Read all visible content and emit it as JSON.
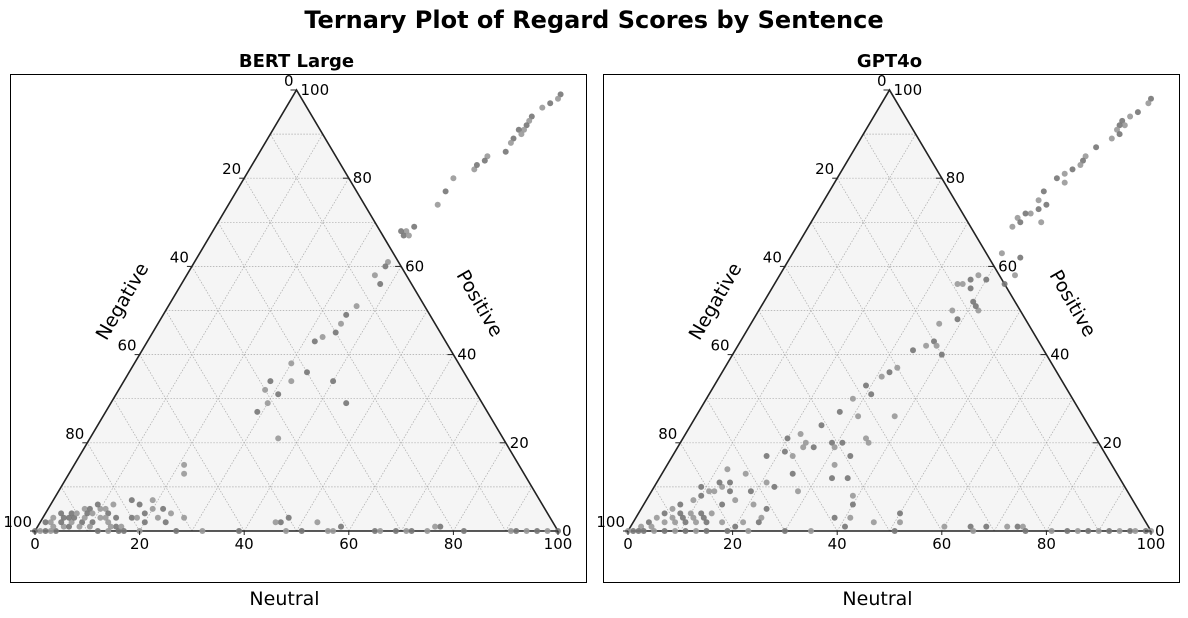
{
  "suptitle": "Ternary Plot of Regard Scores by Sentence",
  "chart_data": [
    {
      "type": "scatter",
      "subtype": "ternary",
      "title": "BERT Large",
      "axes": {
        "bottom": "Neutral",
        "left": "Negative",
        "right": "Positive"
      },
      "ticks": [
        0,
        20,
        40,
        60,
        80,
        100
      ],
      "ranges": {
        "neutral": [
          0,
          100
        ],
        "negative": [
          0,
          100
        ],
        "positive": [
          0,
          100
        ]
      },
      "grid": true,
      "background_color": "#f5f5f5",
      "point_colors": [
        "#777777",
        "#999999"
      ],
      "point_columns": [
        "neutral",
        "positive"
      ],
      "points": [
        [
          51,
          99
        ],
        [
          51,
          98
        ],
        [
          50,
          97
        ],
        [
          49,
          96
        ],
        [
          48,
          94
        ],
        [
          48,
          93
        ],
        [
          48,
          92
        ],
        [
          48,
          91
        ],
        [
          47,
          91
        ],
        [
          48,
          90
        ],
        [
          47,
          89
        ],
        [
          47,
          88
        ],
        [
          47,
          86
        ],
        [
          44,
          85
        ],
        [
          44,
          84
        ],
        [
          43,
          82
        ],
        [
          43,
          83
        ],
        [
          40,
          80
        ],
        [
          40,
          77
        ],
        [
          40,
          74
        ],
        [
          38,
          69
        ],
        [
          37,
          68
        ],
        [
          37,
          67
        ],
        [
          38,
          67
        ],
        [
          36,
          68
        ],
        [
          37,
          61
        ],
        [
          37,
          60
        ],
        [
          36,
          58
        ],
        [
          38,
          56
        ],
        [
          36,
          51
        ],
        [
          35,
          49
        ],
        [
          35,
          47
        ],
        [
          35,
          45
        ],
        [
          33,
          44
        ],
        [
          32,
          43
        ],
        [
          30,
          38
        ],
        [
          34,
          36
        ],
        [
          32,
          34
        ],
        [
          28,
          34
        ],
        [
          28,
          32
        ],
        [
          31,
          31
        ],
        [
          30,
          29
        ],
        [
          29,
          27
        ],
        [
          21,
          15
        ],
        [
          40,
          34
        ],
        [
          22,
          13
        ],
        [
          45,
          29
        ],
        [
          36,
          21
        ],
        [
          17,
          3
        ],
        [
          18,
          3
        ],
        [
          10,
          2
        ],
        [
          10,
          1
        ],
        [
          8,
          2
        ],
        [
          8,
          1
        ],
        [
          4,
          0
        ],
        [
          3,
          0
        ],
        [
          2,
          0
        ],
        [
          1,
          0
        ],
        [
          0,
          0
        ],
        [
          5,
          1
        ],
        [
          6,
          1
        ],
        [
          3,
          1
        ],
        [
          4,
          2
        ],
        [
          2,
          2
        ],
        [
          4,
          3
        ],
        [
          6,
          2
        ],
        [
          6,
          3
        ],
        [
          8,
          3
        ],
        [
          5,
          4
        ],
        [
          7,
          5
        ],
        [
          8,
          4
        ],
        [
          10,
          5
        ],
        [
          9,
          6
        ],
        [
          11,
          5
        ],
        [
          12,
          4
        ],
        [
          12,
          3
        ],
        [
          14,
          3
        ],
        [
          13,
          2
        ],
        [
          15,
          1
        ],
        [
          14,
          1
        ],
        [
          16,
          0
        ],
        [
          16,
          1
        ],
        [
          12,
          0
        ],
        [
          14,
          0
        ],
        [
          17,
          0
        ],
        [
          20,
          0
        ],
        [
          20,
          2
        ],
        [
          22,
          3
        ],
        [
          24,
          2
        ],
        [
          27,
          3
        ],
        [
          27,
          0
        ],
        [
          32,
          0
        ],
        [
          39,
          0
        ],
        [
          48,
          0
        ],
        [
          51,
          0
        ],
        [
          56,
          0
        ],
        [
          46,
          2
        ],
        [
          45,
          2
        ],
        [
          47,
          3
        ],
        [
          53,
          2
        ],
        [
          58,
          1
        ],
        [
          57,
          0
        ],
        [
          65,
          0
        ],
        [
          66,
          0
        ],
        [
          69,
          0
        ],
        [
          71,
          0
        ],
        [
          72,
          0
        ],
        [
          75,
          0
        ],
        [
          77,
          1
        ],
        [
          76,
          1
        ],
        [
          82,
          0
        ],
        [
          91,
          0
        ],
        [
          92,
          0
        ],
        [
          94,
          0
        ],
        [
          96,
          0
        ],
        [
          98,
          0
        ],
        [
          100,
          0
        ],
        [
          12,
          6
        ],
        [
          15,
          7
        ],
        [
          19,
          7
        ],
        [
          17,
          6
        ],
        [
          20,
          5
        ],
        [
          22,
          5
        ],
        [
          24,
          4
        ],
        [
          19,
          4
        ],
        [
          11,
          3
        ],
        [
          8,
          5
        ],
        [
          6,
          4
        ],
        [
          5,
          3
        ],
        [
          9,
          4
        ],
        [
          3,
          4
        ],
        [
          2,
          3
        ],
        [
          1,
          2
        ]
      ]
    },
    {
      "type": "scatter",
      "subtype": "ternary",
      "title": "GPT4o",
      "axes": {
        "bottom": "Neutral",
        "left": "Negative",
        "right": "Positive"
      },
      "ticks": [
        0,
        20,
        40,
        60,
        80,
        100
      ],
      "ranges": {
        "neutral": [
          0,
          100
        ],
        "negative": [
          0,
          100
        ],
        "positive": [
          0,
          100
        ]
      },
      "grid": true,
      "background_color": "#f5f5f5",
      "point_colors": [
        "#777777",
        "#999999"
      ],
      "point_columns": [
        "neutral",
        "positive"
      ],
      "points": [
        [
          51,
          98
        ],
        [
          51,
          97
        ],
        [
          50,
          95
        ],
        [
          49,
          94
        ],
        [
          48,
          93
        ],
        [
          49,
          92
        ],
        [
          48,
          92
        ],
        [
          48,
          91
        ],
        [
          49,
          90
        ],
        [
          48,
          89
        ],
        [
          46,
          87
        ],
        [
          45,
          85
        ],
        [
          45,
          84
        ],
        [
          45,
          83
        ],
        [
          44,
          82
        ],
        [
          43,
          81
        ],
        [
          42,
          80
        ],
        [
          44,
          79
        ],
        [
          41,
          77
        ],
        [
          41,
          75
        ],
        [
          42,
          73
        ],
        [
          41,
          72
        ],
        [
          40,
          72
        ],
        [
          39,
          71
        ],
        [
          40,
          70
        ],
        [
          39,
          69
        ],
        [
          43,
          74
        ],
        [
          44,
          70
        ],
        [
          44,
          62
        ],
        [
          45,
          58
        ],
        [
          44,
          56
        ],
        [
          40,
          63
        ],
        [
          40,
          57
        ],
        [
          38,
          58
        ],
        [
          37,
          57
        ],
        [
          36,
          56
        ],
        [
          38,
          55
        ],
        [
          35,
          56
        ],
        [
          40,
          52
        ],
        [
          42,
          50
        ],
        [
          41,
          51
        ],
        [
          37,
          50
        ],
        [
          39,
          48
        ],
        [
          36,
          47
        ],
        [
          37,
          43
        ],
        [
          36,
          42
        ],
        [
          40,
          40
        ],
        [
          38,
          42
        ],
        [
          34,
          41
        ],
        [
          33,
          37
        ],
        [
          32,
          36
        ],
        [
          31,
          35
        ],
        [
          29,
          33
        ],
        [
          28,
          30
        ],
        [
          31,
          31
        ],
        [
          38,
          26
        ],
        [
          27,
          27
        ],
        [
          31,
          26
        ],
        [
          25,
          24
        ],
        [
          22,
          22
        ],
        [
          20,
          21
        ],
        [
          24,
          20
        ],
        [
          31,
          20
        ],
        [
          36,
          20
        ],
        [
          34,
          17
        ],
        [
          32,
          15
        ],
        [
          33,
          12
        ],
        [
          35,
          21
        ],
        [
          29,
          20
        ],
        [
          24,
          19
        ],
        [
          26,
          19
        ],
        [
          30,
          19
        ],
        [
          21,
          18
        ],
        [
          23,
          17
        ],
        [
          18,
          17
        ],
        [
          16,
          13
        ],
        [
          23,
          10
        ],
        [
          21,
          11
        ],
        [
          25,
          13
        ],
        [
          28,
          9
        ],
        [
          19,
          9
        ],
        [
          21,
          6
        ],
        [
          24,
          5
        ],
        [
          24,
          3
        ],
        [
          24,
          2
        ],
        [
          21,
          2
        ],
        [
          20,
          1
        ],
        [
          17,
          2
        ],
        [
          19,
          0
        ],
        [
          23,
          0
        ],
        [
          30,
          0
        ],
        [
          35,
          0
        ],
        [
          41,
          1
        ],
        [
          46,
          2
        ],
        [
          50,
          4
        ],
        [
          51,
          2
        ],
        [
          51,
          0
        ],
        [
          60,
          1
        ],
        [
          65,
          1
        ],
        [
          66,
          0
        ],
        [
          68,
          1
        ],
        [
          72,
          1
        ],
        [
          74,
          1
        ],
        [
          75,
          1
        ],
        [
          76,
          0
        ],
        [
          81,
          0
        ],
        [
          84,
          0
        ],
        [
          86,
          0
        ],
        [
          88,
          0
        ],
        [
          90,
          0
        ],
        [
          92,
          0
        ],
        [
          94,
          0
        ],
        [
          96,
          0
        ],
        [
          97,
          0
        ],
        [
          99,
          0
        ],
        [
          100,
          0
        ],
        [
          36,
          12
        ],
        [
          39,
          8
        ],
        [
          40,
          6
        ],
        [
          41,
          3
        ],
        [
          38,
          3
        ],
        [
          12,
          14
        ],
        [
          14,
          11
        ],
        [
          12,
          9
        ],
        [
          10,
          8
        ],
        [
          9,
          7
        ],
        [
          7,
          6
        ],
        [
          6,
          5
        ],
        [
          5,
          4
        ],
        [
          4,
          3
        ],
        [
          3,
          2
        ],
        [
          2,
          1
        ],
        [
          1,
          0
        ],
        [
          0,
          0
        ],
        [
          3,
          0
        ],
        [
          5,
          0
        ],
        [
          7,
          0
        ],
        [
          9,
          0
        ],
        [
          11,
          0
        ],
        [
          13,
          0
        ],
        [
          15,
          0
        ],
        [
          8,
          2
        ],
        [
          10,
          2
        ],
        [
          12,
          2
        ],
        [
          14,
          2
        ],
        [
          6,
          2
        ],
        [
          9,
          3
        ],
        [
          11,
          3
        ],
        [
          13,
          3
        ],
        [
          7,
          3
        ],
        [
          8,
          4
        ],
        [
          10,
          4
        ],
        [
          12,
          4
        ],
        [
          14,
          4
        ],
        [
          15,
          6
        ],
        [
          17,
          7
        ],
        [
          15,
          9
        ],
        [
          13,
          10
        ],
        [
          12,
          11
        ],
        [
          11,
          9
        ],
        [
          9,
          10
        ],
        [
          4,
          1
        ],
        [
          2,
          0
        ]
      ]
    }
  ]
}
